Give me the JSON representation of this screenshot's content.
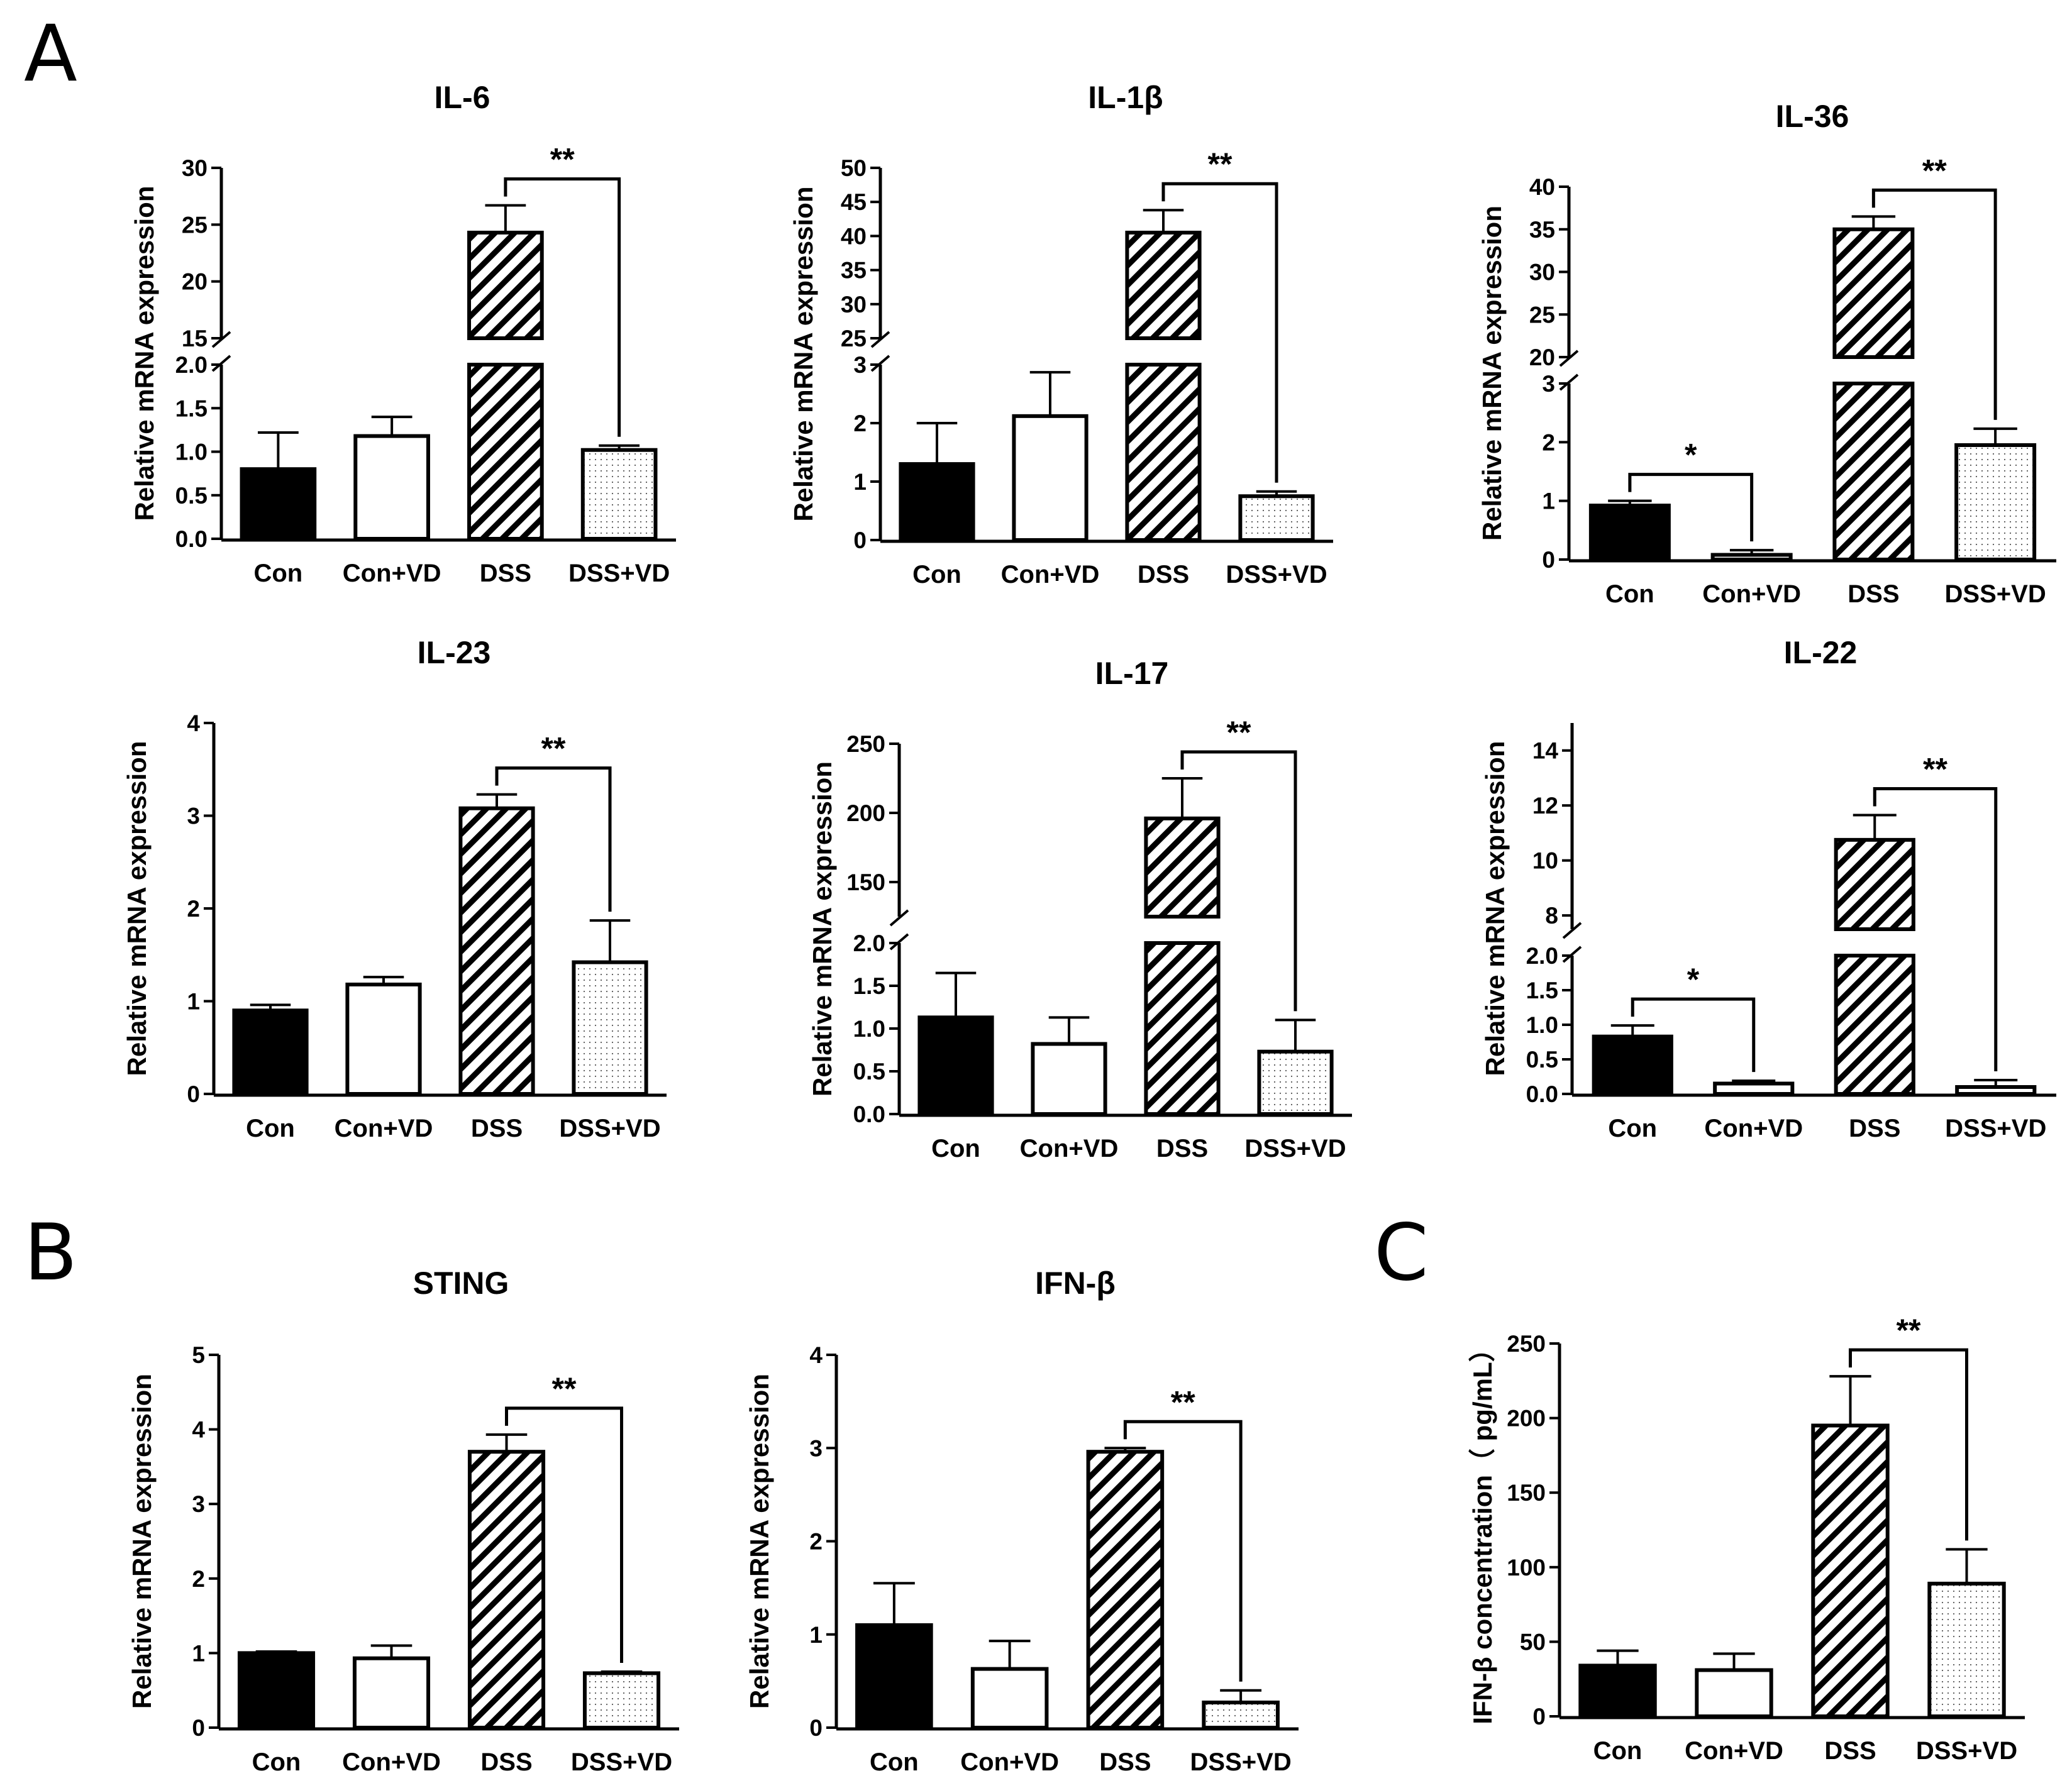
{
  "panels": {
    "A": "A",
    "B": "B",
    "C": "C"
  },
  "colors": {
    "ink": "#000000",
    "control_fill": "#000000",
    "vd_fill": "#ffffff"
  },
  "chart_data": [
    {
      "id": "il6",
      "panel": "A",
      "type": "bar",
      "title": "IL-6",
      "ylabel": "Relative mRNA expression",
      "categories": [
        "Con",
        "Con+VD",
        "DSS",
        "DSS+VD"
      ],
      "values": [
        0.8,
        1.18,
        24.3,
        1.02
      ],
      "errors": [
        0.42,
        0.22,
        2.4,
        0.05
      ],
      "break": {
        "low_range": [
          0,
          2
        ],
        "low_ticks": [
          0,
          0.5,
          1,
          1.5,
          2
        ],
        "low_tick_labels": [
          "0.0",
          "0.5",
          "1.0",
          "1.5",
          "2.0"
        ],
        "high_range": [
          15,
          30
        ],
        "high_ticks": [
          15,
          20,
          25,
          30
        ],
        "high_tick_labels": [
          "15",
          "20",
          "25",
          "30"
        ]
      },
      "significance": [
        {
          "from": 2,
          "to": 3,
          "label": "**"
        }
      ]
    },
    {
      "id": "il1b",
      "panel": "A",
      "type": "bar",
      "title": "IL-1β",
      "ylabel": "Relative mRNA expression",
      "categories": [
        "Con",
        "Con+VD",
        "DSS",
        "DSS+VD"
      ],
      "values": [
        1.3,
        2.12,
        40.5,
        0.75
      ],
      "errors": [
        0.7,
        0.75,
        3.3,
        0.08
      ],
      "break": {
        "low_range": [
          0,
          3
        ],
        "low_ticks": [
          0,
          1,
          2,
          3
        ],
        "low_tick_labels": [
          "0",
          "1",
          "2",
          "3"
        ],
        "high_range": [
          25,
          50
        ],
        "high_ticks": [
          25,
          30,
          35,
          40,
          45,
          50
        ],
        "high_tick_labels": [
          "25",
          "30",
          "35",
          "40",
          "45",
          "50"
        ]
      },
      "significance": [
        {
          "from": 2,
          "to": 3,
          "label": "**"
        }
      ]
    },
    {
      "id": "il36",
      "panel": "A",
      "type": "bar",
      "title": "IL-36",
      "ylabel": "Relative mRNA expression",
      "categories": [
        "Con",
        "Con+VD",
        "DSS",
        "DSS+VD"
      ],
      "values": [
        0.92,
        0.08,
        35.0,
        1.95
      ],
      "errors": [
        0.08,
        0.08,
        1.5,
        0.28
      ],
      "break": {
        "low_range": [
          0,
          3
        ],
        "low_ticks": [
          0,
          1,
          2,
          3
        ],
        "low_tick_labels": [
          "0",
          "1",
          "2",
          "3"
        ],
        "high_range": [
          20,
          40
        ],
        "high_ticks": [
          20,
          25,
          30,
          35,
          40
        ],
        "high_tick_labels": [
          "20",
          "25",
          "30",
          "35",
          "40"
        ]
      },
      "significance": [
        {
          "from": 0,
          "to": 1,
          "label": "*"
        },
        {
          "from": 2,
          "to": 3,
          "label": "**"
        }
      ]
    },
    {
      "id": "il23",
      "panel": "A",
      "type": "bar",
      "title": "IL-23",
      "ylabel": "Relative mRNA expression",
      "categories": [
        "Con",
        "Con+VD",
        "DSS",
        "DSS+VD"
      ],
      "values": [
        0.9,
        1.18,
        3.08,
        1.42
      ],
      "errors": [
        0.06,
        0.08,
        0.15,
        0.45
      ],
      "ylim": [
        0,
        4
      ],
      "yticks": [
        0,
        1,
        2,
        3,
        4
      ],
      "ytick_labels": [
        "0",
        "1",
        "2",
        "3",
        "4"
      ],
      "significance": [
        {
          "from": 2,
          "to": 3,
          "label": "**"
        }
      ]
    },
    {
      "id": "il17",
      "panel": "A",
      "type": "bar",
      "title": "IL-17",
      "ylabel": "Relative mRNA expression",
      "categories": [
        "Con",
        "Con+VD",
        "DSS",
        "DSS+VD"
      ],
      "values": [
        1.13,
        0.82,
        196,
        0.73
      ],
      "errors": [
        0.52,
        0.31,
        29,
        0.37
      ],
      "break": {
        "low_range": [
          0,
          2
        ],
        "low_ticks": [
          0,
          0.5,
          1,
          1.5,
          2
        ],
        "low_tick_labels": [
          "0.0",
          "0.5",
          "1.0",
          "1.5",
          "2.0"
        ],
        "high_range": [
          125,
          250
        ],
        "high_ticks": [
          150,
          200,
          250
        ],
        "high_tick_labels": [
          "150",
          "200",
          "250"
        ]
      },
      "significance": [
        {
          "from": 2,
          "to": 3,
          "label": "**"
        }
      ]
    },
    {
      "id": "il22",
      "panel": "A",
      "type": "bar",
      "title": "IL-22",
      "ylabel": "Relative mRNA expression",
      "categories": [
        "Con",
        "Con+VD",
        "DSS",
        "DSS+VD"
      ],
      "values": [
        0.83,
        0.15,
        10.75,
        0.1
      ],
      "errors": [
        0.16,
        0.04,
        0.9,
        0.1
      ],
      "break": {
        "low_range": [
          0,
          2
        ],
        "low_ticks": [
          0,
          0.5,
          1,
          1.5,
          2
        ],
        "low_tick_labels": [
          "0.0",
          "0.5",
          "1.0",
          "1.5",
          "2.0"
        ],
        "high_range": [
          7.5,
          15
        ],
        "high_ticks": [
          8,
          10,
          12,
          14
        ],
        "high_tick_labels": [
          "8",
          "10",
          "12",
          "14"
        ]
      },
      "significance": [
        {
          "from": 0,
          "to": 1,
          "label": "*"
        },
        {
          "from": 2,
          "to": 3,
          "label": "**"
        }
      ]
    },
    {
      "id": "sting",
      "panel": "B",
      "type": "bar",
      "title": "STING",
      "ylabel": "Relative mRNA expression",
      "categories": [
        "Con",
        "Con+VD",
        "DSS",
        "DSS+VD"
      ],
      "values": [
        1.0,
        0.93,
        3.7,
        0.73
      ],
      "errors": [
        0.02,
        0.17,
        0.23,
        0.02
      ],
      "ylim": [
        0,
        5
      ],
      "yticks": [
        0,
        1,
        2,
        3,
        4,
        5
      ],
      "ytick_labels": [
        "0",
        "1",
        "2",
        "3",
        "4",
        "5"
      ],
      "significance": [
        {
          "from": 2,
          "to": 3,
          "label": "**"
        }
      ]
    },
    {
      "id": "ifnb",
      "panel": "B",
      "type": "bar",
      "title": "IFN-β",
      "ylabel": "Relative mRNA expression",
      "categories": [
        "Con",
        "Con+VD",
        "DSS",
        "DSS+VD"
      ],
      "values": [
        1.1,
        0.63,
        2.96,
        0.27
      ],
      "errors": [
        0.45,
        0.3,
        0.04,
        0.13
      ],
      "ylim": [
        0,
        4
      ],
      "yticks": [
        0,
        1,
        2,
        3,
        4
      ],
      "ytick_labels": [
        "0",
        "1",
        "2",
        "3",
        "4"
      ],
      "significance": [
        {
          "from": 2,
          "to": 3,
          "label": "**"
        }
      ]
    },
    {
      "id": "ifnb_conc",
      "panel": "C",
      "type": "bar",
      "title": "",
      "ylabel": "IFN-β concentration（ pg/mL）",
      "categories": [
        "Con",
        "Con+VD",
        "DSS",
        "DSS+VD"
      ],
      "values": [
        34,
        31,
        195,
        89
      ],
      "errors": [
        10,
        11,
        33,
        23
      ],
      "ylim": [
        0,
        250
      ],
      "yticks": [
        0,
        50,
        100,
        150,
        200,
        250
      ],
      "ytick_labels": [
        "0",
        "50",
        "100",
        "150",
        "200",
        "250"
      ],
      "significance": [
        {
          "from": 2,
          "to": 3,
          "label": "**"
        }
      ]
    }
  ]
}
